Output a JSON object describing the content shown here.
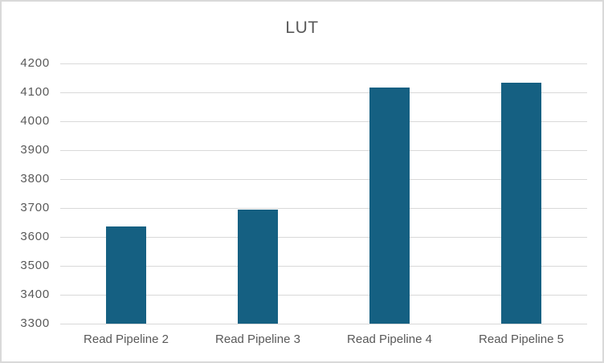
{
  "chart_data": {
    "type": "bar",
    "title": "LUT",
    "categories": [
      "Read Pipeline 2",
      "Read Pipeline 3",
      "Read Pipeline 4",
      "Read Pipeline 5"
    ],
    "values": [
      3635,
      3695,
      4117,
      4133
    ],
    "xlabel": "",
    "ylabel": "",
    "ylim": [
      3300,
      4200
    ],
    "ytick_step": 100,
    "ytick_labels": [
      "4200",
      "4100",
      "4000",
      "3900",
      "3800",
      "3700",
      "3600",
      "3500",
      "3400",
      "3300"
    ],
    "grid": true,
    "legend": false,
    "colors": {
      "bar": "#156082",
      "gridline": "#D9D9D9",
      "axis_text": "#595959",
      "title_text": "#595959",
      "frame_border": "#D9D9D9",
      "background": "#FFFFFF"
    }
  }
}
